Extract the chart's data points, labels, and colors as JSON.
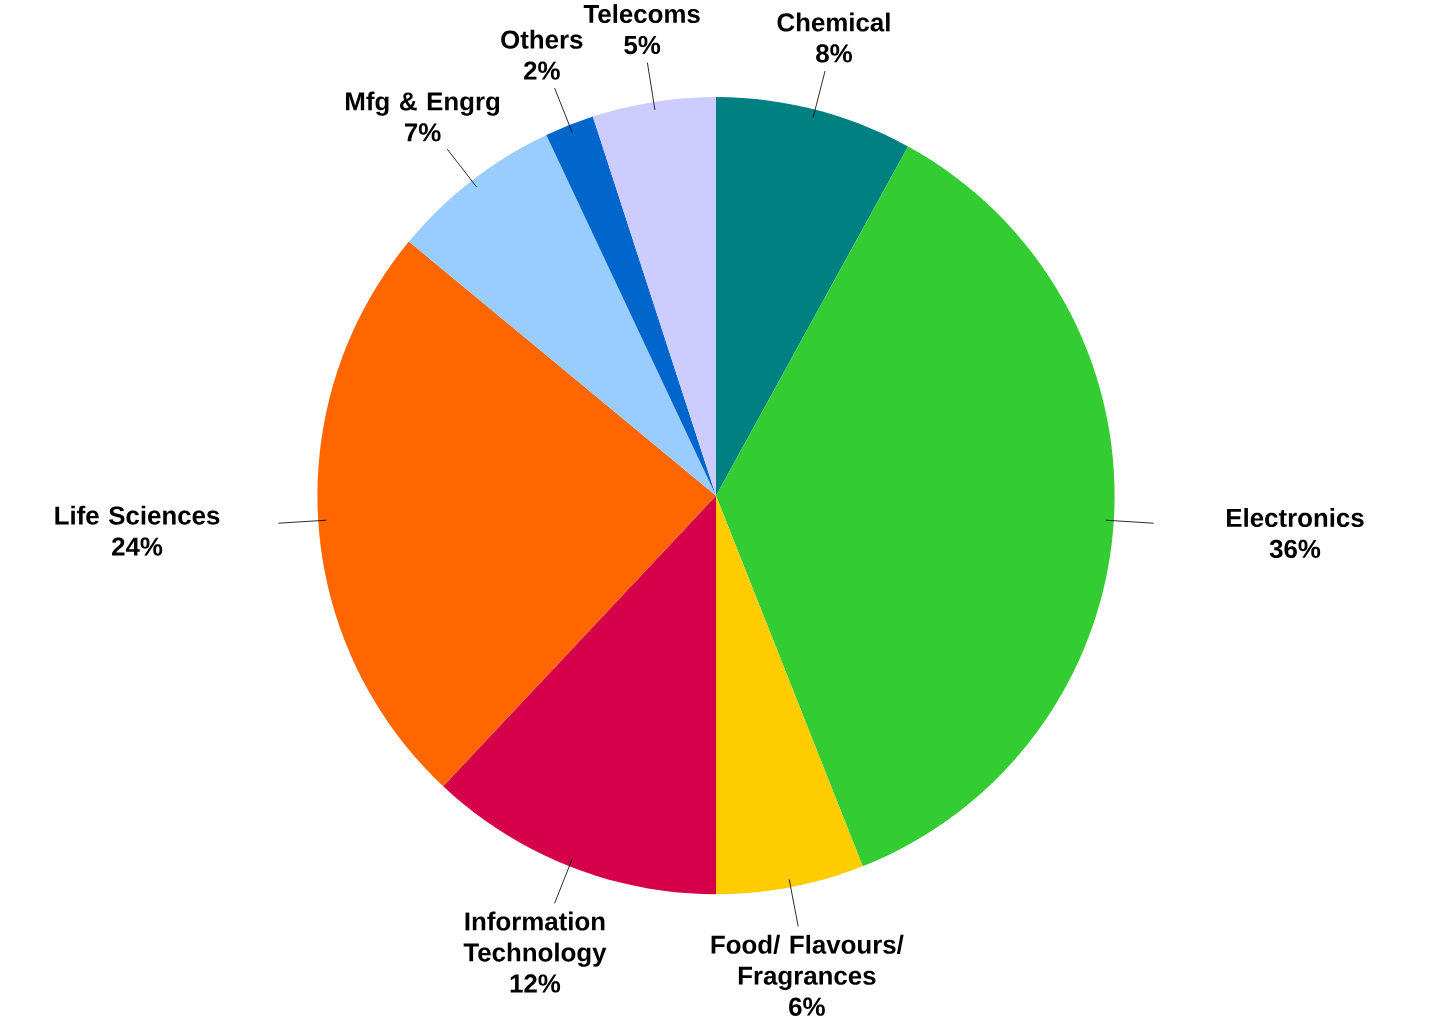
{
  "chart_data": {
    "type": "pie",
    "categories": [
      "Chemical",
      "Electronics",
      "Food/ Flavours/ Fragrances",
      "Information Technology",
      "Life Sciences",
      "Mfg & Engrg",
      "Others",
      "Telecoms"
    ],
    "values": [
      8,
      36,
      6,
      12,
      24,
      7,
      2,
      5
    ],
    "value_labels": [
      "8%",
      "36%",
      "6%",
      "12%",
      "24%",
      "7%",
      "2%",
      "5%"
    ],
    "colors": [
      "#008080",
      "#33cc33",
      "#ffcc00",
      "#d6004a",
      "#ff6600",
      "#99ccff",
      "#0066cc",
      "#ccccff"
    ]
  }
}
